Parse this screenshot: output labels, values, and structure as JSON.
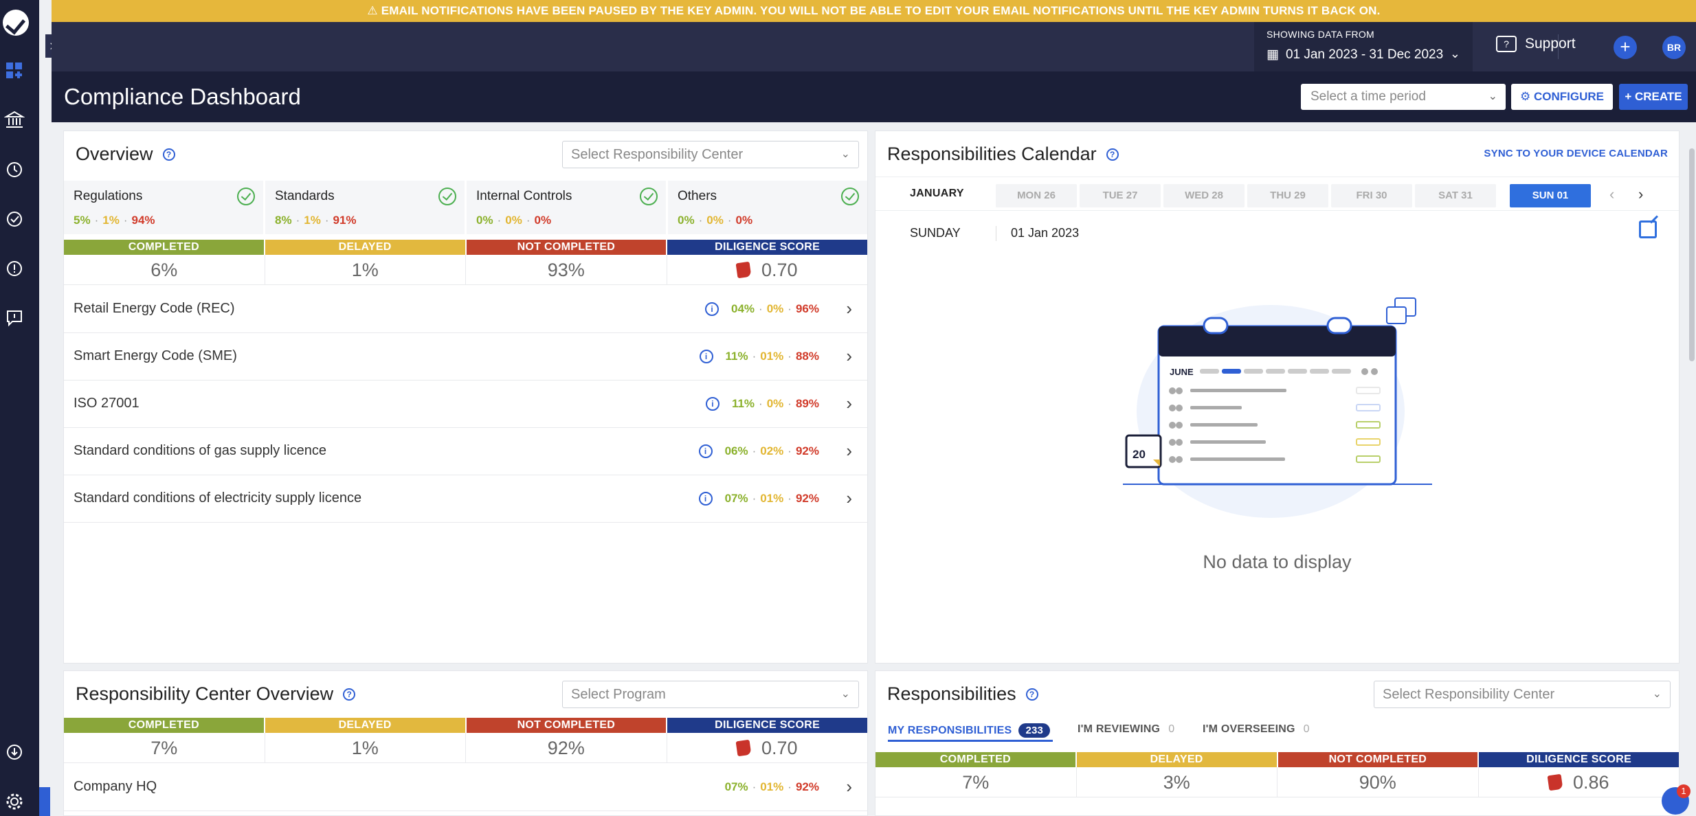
{
  "banner": {
    "text": "⚠ EMAIL NOTIFICATIONS HAVE BEEN PAUSED BY THE KEY ADMIN. YOU WILL NOT BE ABLE TO EDIT YOUR EMAIL NOTIFICATIONS UNTIL THE KEY ADMIN TURNS IT BACK ON."
  },
  "topbar": {
    "showing_label": "SHOWING DATA FROM",
    "date_range": "01 Jan 2023 - 31 Dec 2023",
    "support": "Support",
    "add": "+",
    "avatar": "BR"
  },
  "sidebar": {
    "icons": [
      "logo-icon",
      "dashboard-icon",
      "bank-icon",
      "history-icon",
      "check-circle-icon",
      "alert-icon",
      "feedback-icon",
      "download-icon",
      "settings-icon"
    ]
  },
  "titlebar": {
    "title": "Compliance Dashboard",
    "time_placeholder": "Select a time period",
    "configure": "CONFIGURE",
    "create": "+ CREATE"
  },
  "overview": {
    "title": "Overview",
    "select": "Select Responsibility Center",
    "categories": [
      {
        "name": "Regulations",
        "completed": "5%",
        "delayed": "1%",
        "not_completed": "94%"
      },
      {
        "name": "Standards",
        "completed": "8%",
        "delayed": "1%",
        "not_completed": "91%"
      },
      {
        "name": "Internal Controls",
        "completed": "0%",
        "delayed": "0%",
        "not_completed": "0%"
      },
      {
        "name": "Others",
        "completed": "0%",
        "delayed": "0%",
        "not_completed": "0%"
      }
    ],
    "heads": [
      "COMPLETED",
      "DELAYED",
      "NOT COMPLETED",
      "DILIGENCE SCORE"
    ],
    "values": [
      "6%",
      "1%",
      "93%",
      "0.70"
    ],
    "rows": [
      {
        "name": "Retail Energy Code (REC)",
        "completed": "04%",
        "delayed": "0%",
        "not_completed": "96%"
      },
      {
        "name": "Smart Energy Code (SME)",
        "completed": "11%",
        "delayed": "01%",
        "not_completed": "88%"
      },
      {
        "name": "ISO 27001",
        "completed": "11%",
        "delayed": "0%",
        "not_completed": "89%"
      },
      {
        "name": "Standard conditions of gas supply licence",
        "completed": "06%",
        "delayed": "02%",
        "not_completed": "92%"
      },
      {
        "name": "Standard conditions of electricity supply licence",
        "completed": "07%",
        "delayed": "01%",
        "not_completed": "92%"
      }
    ]
  },
  "calendar": {
    "title": "Responsibilities Calendar",
    "sync": "SYNC TO YOUR DEVICE CALENDAR",
    "month": "JANUARY",
    "days": [
      "MON 26",
      "TUE 27",
      "WED 28",
      "THU 29",
      "FRI 30",
      "SAT 31",
      "SUN 01"
    ],
    "selected_day": "SUN 01",
    "weekday": "SUNDAY",
    "date": "01 Jan 2023",
    "illus_month": "JUNE",
    "illus_day": "20",
    "empty": "No data to display"
  },
  "rc_overview": {
    "title": "Responsibility Center Overview",
    "select": "Select Program",
    "heads": [
      "COMPLETED",
      "DELAYED",
      "NOT COMPLETED",
      "DILIGENCE SCORE"
    ],
    "values": [
      "7%",
      "1%",
      "92%",
      "0.70"
    ],
    "rows": [
      {
        "name": "Company HQ",
        "completed": "07%",
        "delayed": "01%",
        "not_completed": "92%"
      }
    ]
  },
  "responsibilities": {
    "title": "Responsibilities",
    "select": "Select Responsibility Center",
    "tabs": [
      {
        "label": "MY RESPONSIBILITIES",
        "count": "233"
      },
      {
        "label": "I'M REVIEWING",
        "count": "0"
      },
      {
        "label": "I'M OVERSEEING",
        "count": "0"
      }
    ],
    "heads": [
      "COMPLETED",
      "DELAYED",
      "NOT COMPLETED",
      "DILIGENCE SCORE"
    ],
    "values": [
      "7%",
      "3%",
      "90%",
      "0.86"
    ]
  },
  "chat": {
    "badge": "1"
  },
  "colors": {
    "navy": "#1b1f38",
    "accent": "#2f5fd4",
    "banner": "#e6b73b",
    "completed": "#8aa63a",
    "delayed": "#e2b83e",
    "not_completed": "#c0432c",
    "diligence": "#1f3a8a"
  }
}
